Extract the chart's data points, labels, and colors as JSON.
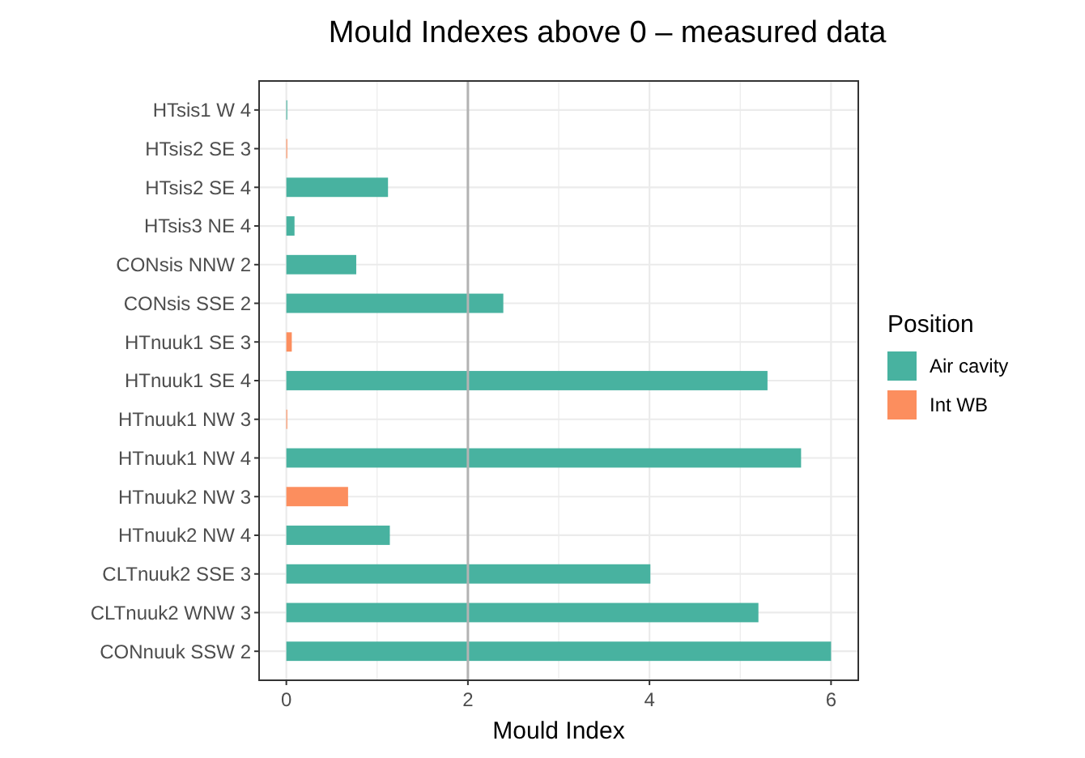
{
  "chart_data": {
    "type": "bar",
    "title": "Mould Indexes above 0 –  measured data",
    "xlabel": "Mould Index",
    "legend_title": "Position",
    "orientation": "horizontal",
    "categories": [
      "HTsis1 W 4",
      "HTsis2 SE 3",
      "HTsis2 SE 4",
      "HTsis3 NE 4",
      "CONsis NNW 2",
      "CONsis SSE 2",
      "HTnuuk1 SE 3",
      "HTnuuk1 SE 4",
      "HTnuuk1 NW 3",
      "HTnuuk1 NW 4",
      "HTnuuk2 NW 3",
      "HTnuuk2 NW 4",
      "CLTnuuk2 SSE 3",
      "CLTnuuk2 WNW 3",
      "CONnuuk SSW 2"
    ],
    "series": [
      {
        "name": "Air cavity",
        "color": "#48b2a0",
        "values": [
          0.01,
          null,
          1.12,
          0.09,
          0.77,
          2.39,
          null,
          5.3,
          null,
          5.67,
          null,
          1.14,
          4.01,
          5.2,
          6.0
        ]
      },
      {
        "name": "Int WB",
        "color": "#fc8e5e",
        "values": [
          null,
          0.01,
          null,
          null,
          null,
          null,
          0.06,
          null,
          0.01,
          null,
          0.68,
          null,
          null,
          null,
          null
        ]
      }
    ],
    "xlim": [
      -0.3,
      6.3
    ],
    "xticks": [
      0,
      {
        "value": 1,
        "label": null
      },
      2,
      {
        "value": 3,
        "label": null
      },
      4,
      {
        "value": 5,
        "label": null
      },
      6
    ],
    "grid": true,
    "legend": "right",
    "ref_lines": [
      {
        "axis": "x",
        "value": 2,
        "label": null,
        "color": "#b3b3b3"
      }
    ]
  }
}
